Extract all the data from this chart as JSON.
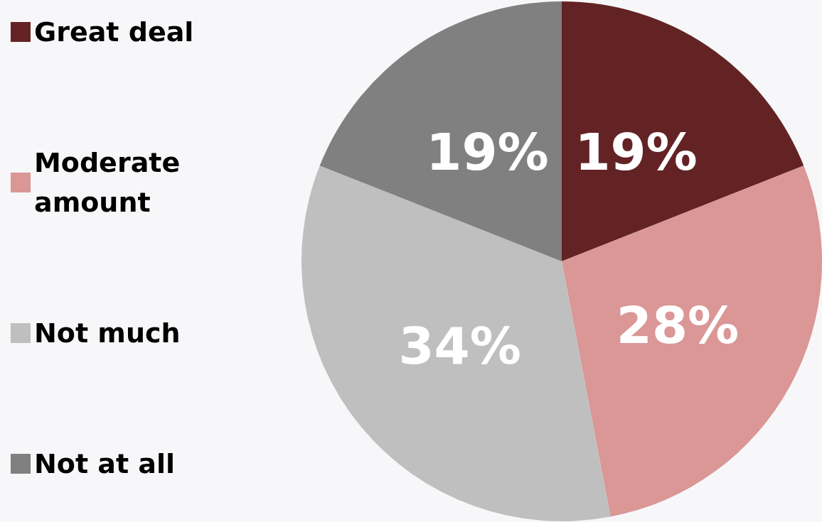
{
  "chart_data": {
    "type": "pie",
    "categories": [
      "Great deal",
      "Moderate amount",
      "Not much",
      "Not at all"
    ],
    "values": [
      19,
      28,
      34,
      19
    ],
    "value_labels": [
      "19%",
      "28%",
      "34%",
      "19%"
    ],
    "colors": [
      "#632324",
      "#db9696",
      "#bfbfbf",
      "#808080"
    ],
    "legend": "left"
  }
}
